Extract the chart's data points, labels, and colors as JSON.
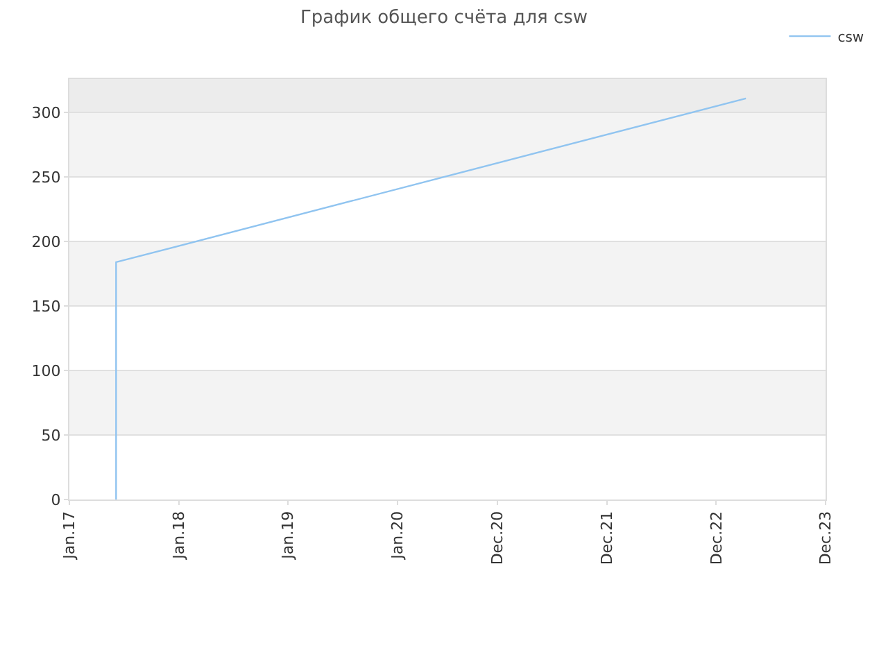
{
  "chart_data": {
    "type": "line",
    "title": "График общего счёта для csw",
    "series": [
      {
        "name": "csw",
        "color": "#90c4f0",
        "x": [
          "2017-06-06",
          "2017-06-06",
          "2023-03-10"
        ],
        "values": [
          0,
          184,
          311
        ]
      }
    ],
    "xlim": [
      "2017-01-01",
      "2023-12-01"
    ],
    "xticks": [
      {
        "value": "2017-01-01",
        "label": "Jan.17"
      },
      {
        "value": "2018-01-01",
        "label": "Jan.18"
      },
      {
        "value": "2019-01-01",
        "label": "Jan.19"
      },
      {
        "value": "2020-01-01",
        "label": "Jan.20"
      },
      {
        "value": "2020-12-01",
        "label": "Dec.20"
      },
      {
        "value": "2021-12-01",
        "label": "Dec.21"
      },
      {
        "value": "2022-12-01",
        "label": "Dec.22"
      },
      {
        "value": "2023-12-01",
        "label": "Dec.23"
      }
    ],
    "ylim": [
      0,
      326
    ],
    "yticks": [
      0,
      50,
      100,
      150,
      200,
      250,
      300
    ],
    "bands": [
      {
        "axis": "y",
        "from": 50,
        "to": 100,
        "color": "#f3f3f3"
      },
      {
        "axis": "y",
        "from": 150,
        "to": 200,
        "color": "#f3f3f3"
      },
      {
        "axis": "y",
        "from": 250,
        "to": 300,
        "color": "#f3f3f3"
      },
      {
        "axis": "y",
        "from": 300,
        "to": 326,
        "color": "#ececec"
      }
    ],
    "grid": "y",
    "legend": "top right",
    "marker": "none",
    "line_style": "solid"
  }
}
